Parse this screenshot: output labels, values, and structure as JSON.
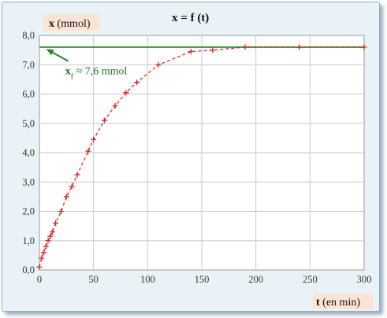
{
  "chart_data": {
    "type": "scatter",
    "title": "x = f (t)",
    "title_parts": {
      "var": "x",
      "eq": " = ",
      "fn": "f",
      "arg": "(t)"
    },
    "ylabel": {
      "var": "x",
      "unit": " (mmol)"
    },
    "xlabel": {
      "var": "t",
      "unit": " (en min)"
    },
    "xlim": [
      0,
      300
    ],
    "ylim": [
      0,
      8
    ],
    "x_ticks": [
      0,
      50,
      100,
      150,
      200,
      250,
      300
    ],
    "y_ticks": [
      "0,0",
      "1,0",
      "2,0",
      "3,0",
      "4,0",
      "5,0",
      "6,0",
      "7,0",
      "8,0"
    ],
    "grid": true,
    "series": [
      {
        "marker": "cross",
        "line": "dashed",
        "color": "#e0201c",
        "x": [
          0,
          2,
          4,
          6,
          8,
          10,
          12,
          15,
          20,
          25,
          30,
          35,
          45,
          50,
          60,
          70,
          80,
          90,
          110,
          140,
          160,
          190,
          240,
          300
        ],
        "y": [
          0.1,
          0.4,
          0.6,
          0.8,
          1.0,
          1.15,
          1.3,
          1.6,
          2.0,
          2.5,
          2.85,
          3.25,
          4.05,
          4.45,
          5.1,
          5.6,
          6.05,
          6.4,
          7.0,
          7.45,
          7.5,
          7.6,
          7.6,
          7.6
        ]
      }
    ],
    "asymptote": {
      "y": 7.6,
      "color": "#2e9a2e"
    },
    "annotation": {
      "sym": "x",
      "sub": "f",
      "text": " ≈ 7,6 mmol",
      "color": "#1f6f1f",
      "arrow_to": [
        5,
        7.6
      ],
      "label_at": [
        18,
        6.8
      ]
    }
  }
}
